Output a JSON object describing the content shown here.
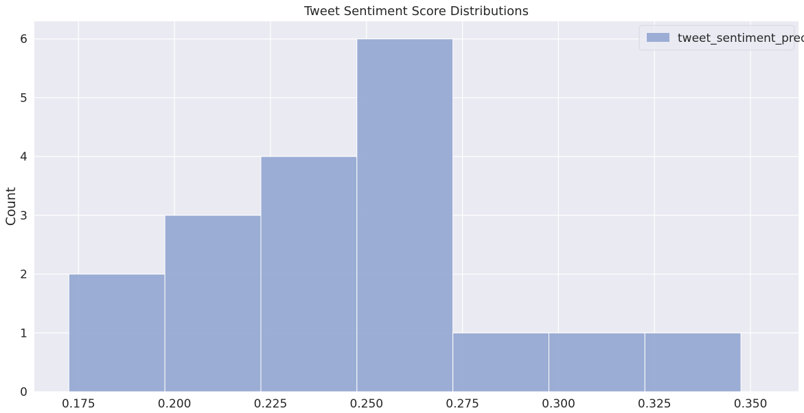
{
  "chart_data": {
    "type": "bar",
    "title": "Tweet Sentiment Score Distributions",
    "xlabel": "",
    "ylabel": "Count",
    "xlim": [
      0.1635,
      0.3625
    ],
    "ylim": [
      0,
      6.3
    ],
    "xticks": [
      0.175,
      0.2,
      0.225,
      0.25,
      0.275,
      0.3,
      0.325,
      0.35
    ],
    "xtick_labels": [
      "0.175",
      "0.200",
      "0.225",
      "0.250",
      "0.275",
      "0.300",
      "0.325",
      "0.350"
    ],
    "yticks": [
      0,
      1,
      2,
      3,
      4,
      5,
      6
    ],
    "ytick_labels": [
      "0",
      "1",
      "2",
      "3",
      "4",
      "5",
      "6"
    ],
    "grid": true,
    "legend_position": "top-right",
    "series": [
      {
        "name": "tweet_sentiment_pred",
        "color": "#8fa4cf",
        "bins": [
          {
            "x0": 0.1725,
            "x1": 0.1975,
            "count": 2
          },
          {
            "x0": 0.1975,
            "x1": 0.2225,
            "count": 3
          },
          {
            "x0": 0.2225,
            "x1": 0.2475,
            "count": 4
          },
          {
            "x0": 0.2475,
            "x1": 0.2725,
            "count": 6
          },
          {
            "x0": 0.2725,
            "x1": 0.2975,
            "count": 1
          },
          {
            "x0": 0.2975,
            "x1": 0.3225,
            "count": 1
          },
          {
            "x0": 0.3225,
            "x1": 0.3475,
            "count": 1
          }
        ]
      }
    ]
  },
  "colors": {
    "plot_background": "#eaeaf2",
    "grid": "#ffffff",
    "bar_fill": "#8fa4cf",
    "bar_edge": "#ffffff",
    "text": "#262626"
  }
}
